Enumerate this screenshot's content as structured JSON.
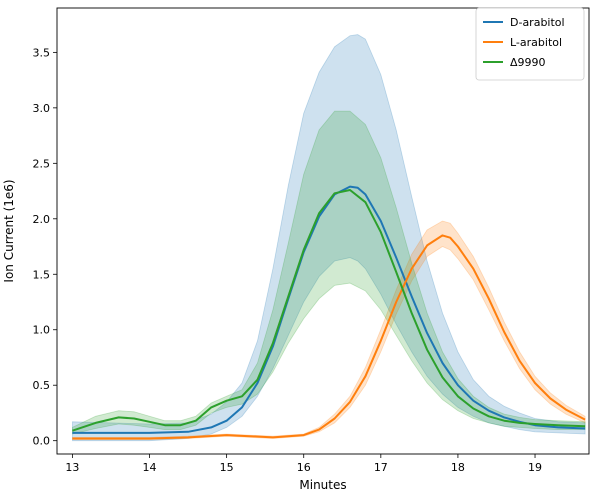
{
  "chart_data": {
    "type": "line",
    "xlabel": "Minutes",
    "ylabel": "Ion Current (1e6)",
    "xlim": [
      12.8,
      19.7
    ],
    "ylim": [
      -0.12,
      3.9
    ],
    "x_ticks": [
      13,
      14,
      15,
      16,
      17,
      18,
      19
    ],
    "y_ticks": [
      0.0,
      0.5,
      1.0,
      1.5,
      2.0,
      2.5,
      3.0,
      3.5
    ],
    "x_tick_labels": [
      "13",
      "14",
      "15",
      "16",
      "17",
      "18",
      "19"
    ],
    "y_tick_labels": [
      "0.0",
      "0.5",
      "1.0",
      "1.5",
      "2.0",
      "2.5",
      "3.0",
      "3.5"
    ],
    "grid": false,
    "legend_position": "top-right",
    "series": [
      {
        "name": "D-arabitol",
        "color": "#1f77b4",
        "x": [
          13.0,
          13.5,
          14.0,
          14.5,
          14.8,
          15.0,
          15.2,
          15.4,
          15.6,
          15.8,
          16.0,
          16.2,
          16.4,
          16.6,
          16.7,
          16.8,
          17.0,
          17.2,
          17.4,
          17.6,
          17.8,
          18.0,
          18.2,
          18.4,
          18.6,
          18.8,
          19.0,
          19.3,
          19.65
        ],
        "y": [
          0.07,
          0.07,
          0.07,
          0.08,
          0.12,
          0.18,
          0.3,
          0.52,
          0.85,
          1.28,
          1.7,
          2.02,
          2.22,
          2.29,
          2.28,
          2.22,
          1.98,
          1.65,
          1.3,
          0.97,
          0.7,
          0.5,
          0.36,
          0.27,
          0.21,
          0.17,
          0.14,
          0.12,
          0.11
        ],
        "lower": [
          0.0,
          0.0,
          0.0,
          0.02,
          0.06,
          0.12,
          0.22,
          0.4,
          0.65,
          0.95,
          1.25,
          1.48,
          1.62,
          1.65,
          1.62,
          1.55,
          1.32,
          1.05,
          0.8,
          0.58,
          0.42,
          0.3,
          0.22,
          0.16,
          0.13,
          0.1,
          0.08,
          0.07,
          0.06
        ],
        "upper": [
          0.17,
          0.16,
          0.15,
          0.16,
          0.24,
          0.35,
          0.52,
          0.9,
          1.55,
          2.3,
          2.95,
          3.32,
          3.55,
          3.65,
          3.66,
          3.62,
          3.3,
          2.8,
          2.2,
          1.62,
          1.15,
          0.8,
          0.55,
          0.4,
          0.31,
          0.25,
          0.2,
          0.17,
          0.16
        ]
      },
      {
        "name": "L-arabitol",
        "color": "#ff7f0e",
        "x": [
          13.0,
          13.5,
          14.0,
          14.5,
          15.0,
          15.3,
          15.6,
          16.0,
          16.2,
          16.4,
          16.6,
          16.8,
          17.0,
          17.2,
          17.4,
          17.6,
          17.8,
          17.9,
          18.0,
          18.2,
          18.4,
          18.6,
          18.8,
          19.0,
          19.2,
          19.4,
          19.65
        ],
        "y": [
          0.02,
          0.02,
          0.02,
          0.03,
          0.05,
          0.04,
          0.03,
          0.05,
          0.1,
          0.2,
          0.35,
          0.58,
          0.9,
          1.25,
          1.55,
          1.76,
          1.85,
          1.83,
          1.75,
          1.55,
          1.28,
          0.98,
          0.72,
          0.52,
          0.38,
          0.28,
          0.19
        ],
        "lower": [
          0.01,
          0.01,
          0.01,
          0.02,
          0.04,
          0.03,
          0.02,
          0.04,
          0.08,
          0.16,
          0.3,
          0.5,
          0.8,
          1.14,
          1.44,
          1.66,
          1.75,
          1.72,
          1.64,
          1.45,
          1.18,
          0.9,
          0.65,
          0.46,
          0.33,
          0.24,
          0.16
        ],
        "upper": [
          0.03,
          0.03,
          0.03,
          0.04,
          0.06,
          0.05,
          0.04,
          0.06,
          0.12,
          0.24,
          0.4,
          0.66,
          1.0,
          1.36,
          1.68,
          1.9,
          1.98,
          1.96,
          1.87,
          1.66,
          1.38,
          1.07,
          0.8,
          0.58,
          0.43,
          0.32,
          0.22
        ]
      },
      {
        "name": "Δ9990",
        "color": "#2ca02c",
        "x": [
          13.0,
          13.3,
          13.6,
          13.8,
          14.0,
          14.2,
          14.4,
          14.6,
          14.8,
          15.0,
          15.2,
          15.4,
          15.6,
          15.8,
          16.0,
          16.2,
          16.4,
          16.6,
          16.8,
          17.0,
          17.2,
          17.4,
          17.6,
          17.8,
          18.0,
          18.2,
          18.4,
          18.6,
          18.8,
          19.0,
          19.3,
          19.65
        ],
        "y": [
          0.09,
          0.16,
          0.21,
          0.2,
          0.17,
          0.14,
          0.14,
          0.18,
          0.3,
          0.36,
          0.4,
          0.55,
          0.88,
          1.3,
          1.72,
          2.05,
          2.23,
          2.26,
          2.15,
          1.88,
          1.52,
          1.15,
          0.82,
          0.57,
          0.4,
          0.29,
          0.22,
          0.18,
          0.16,
          0.15,
          0.14,
          0.13
        ],
        "lower": [
          0.06,
          0.11,
          0.15,
          0.14,
          0.12,
          0.1,
          0.1,
          0.14,
          0.25,
          0.3,
          0.33,
          0.42,
          0.62,
          0.88,
          1.1,
          1.28,
          1.4,
          1.42,
          1.35,
          1.18,
          0.95,
          0.72,
          0.52,
          0.37,
          0.27,
          0.2,
          0.16,
          0.13,
          0.12,
          0.11,
          0.1,
          0.1
        ],
        "upper": [
          0.12,
          0.22,
          0.27,
          0.26,
          0.22,
          0.18,
          0.18,
          0.22,
          0.34,
          0.4,
          0.46,
          0.7,
          1.18,
          1.78,
          2.4,
          2.8,
          2.97,
          2.97,
          2.85,
          2.55,
          2.1,
          1.6,
          1.15,
          0.8,
          0.56,
          0.4,
          0.3,
          0.24,
          0.21,
          0.19,
          0.18,
          0.17
        ]
      }
    ]
  }
}
